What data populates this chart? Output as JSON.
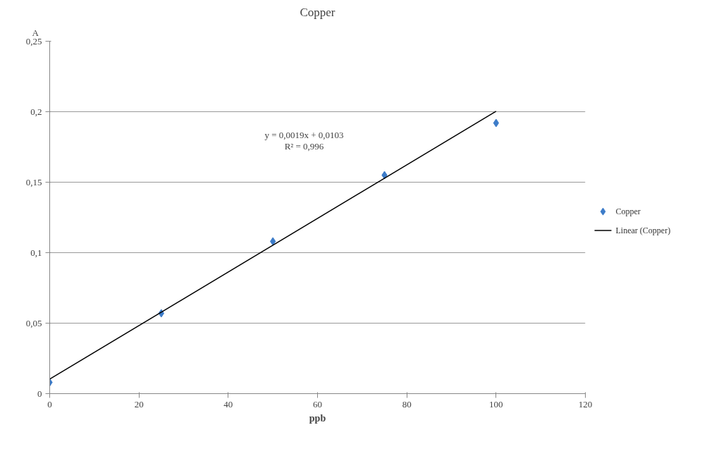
{
  "chart_data": {
    "type": "scatter",
    "title": "Copper",
    "xlabel": "ppb",
    "ylabel": "A",
    "xlim": [
      0,
      120
    ],
    "xticks": [
      0,
      20,
      40,
      60,
      80,
      100,
      120
    ],
    "ylim": [
      0,
      0.25
    ],
    "yticks": [
      {
        "value": 0,
        "label": "0"
      },
      {
        "value": 0.05,
        "label": "0,05"
      },
      {
        "value": 0.1,
        "label": "0,1"
      },
      {
        "value": 0.15,
        "label": "0,15"
      },
      {
        "value": 0.2,
        "label": "0,2"
      },
      {
        "value": 0.25,
        "label": "0,25"
      }
    ],
    "grid": "y",
    "legend": "right",
    "annotations": [
      "y = 0,0019x + 0,0103",
      "R² = 0,996"
    ],
    "series": [
      {
        "name": "Copper",
        "marker": "diamond",
        "color": "#3d7cc9",
        "x": [
          0,
          25,
          50,
          75,
          100
        ],
        "values": [
          0.008,
          0.057,
          0.108,
          0.155,
          0.192
        ]
      },
      {
        "name": "Linear (Copper)",
        "type": "line",
        "color": "#000000",
        "x": [
          0,
          100
        ],
        "values": [
          0.0103,
          0.2003
        ]
      }
    ]
  }
}
